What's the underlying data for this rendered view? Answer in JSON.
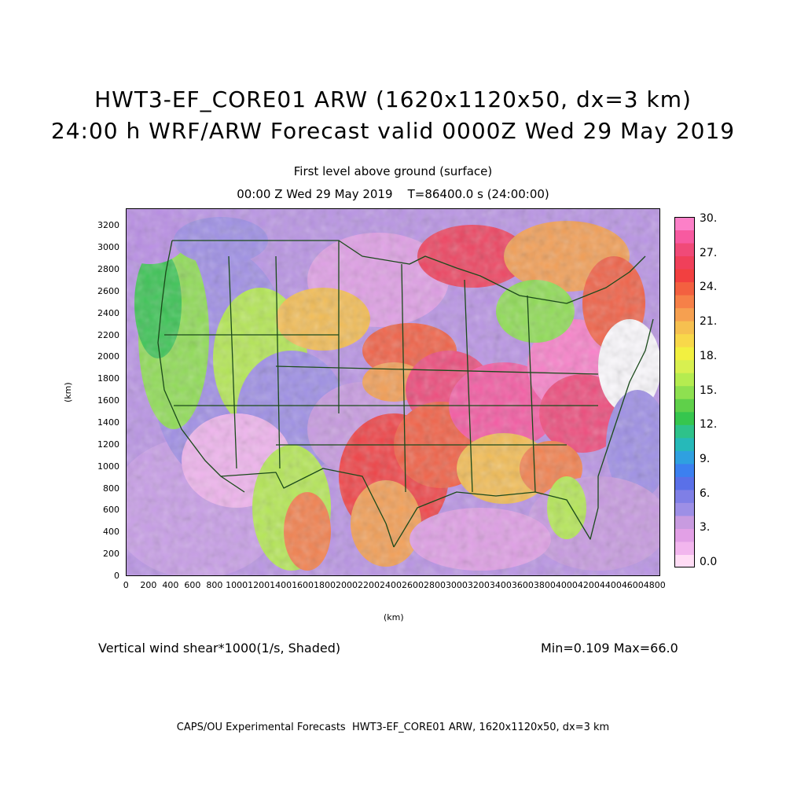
{
  "titles": {
    "main": "HWT3-EF_CORE01 ARW (1620x1120x50, dx=3 km)",
    "forecast": "24:00 h WRF/ARW Forecast valid 0000Z Wed 29 May 2019",
    "level": "First level above ground (surface)",
    "valid_time": "00:00 Z Wed 29 May 2019    T=86400.0 s (24:00:00)"
  },
  "axes": {
    "x_label": "(km)",
    "y_label": "(km)",
    "x_ticks": [
      "0",
      "200",
      "400",
      "600",
      "800",
      "1000",
      "1200",
      "1400",
      "1600",
      "1800",
      "2000",
      "2200",
      "2400",
      "2600",
      "2800",
      "3000",
      "3200",
      "3400",
      "3600",
      "3800",
      "4000",
      "4200",
      "4400",
      "4600",
      "4800"
    ],
    "y_ticks": [
      "0",
      "200",
      "400",
      "600",
      "800",
      "1000",
      "1200",
      "1400",
      "1600",
      "1800",
      "2000",
      "2200",
      "2400",
      "2600",
      "2800",
      "3000",
      "3200"
    ],
    "x_range": [
      0,
      4860
    ],
    "y_range": [
      0,
      3360
    ]
  },
  "colorbar": {
    "labels": [
      "30.",
      "27.",
      "24.",
      "21.",
      "18.",
      "15.",
      "12.",
      "9.",
      "6.",
      "3.",
      "0.0"
    ],
    "colors": [
      "#ffdcf5",
      "#f2b6ee",
      "#e2a0e6",
      "#c89be0",
      "#9d8fe6",
      "#7f7fe6",
      "#5a70e8",
      "#3c80f0",
      "#2fa0e0",
      "#26b9b9",
      "#2ec28a",
      "#36c64e",
      "#5fd04a",
      "#8ee050",
      "#b5ec50",
      "#d8f050",
      "#f2f040",
      "#f8d84a",
      "#f6c050",
      "#f6a050",
      "#f68048",
      "#f36040",
      "#f24040",
      "#f0405a",
      "#f04a78",
      "#f75aa0",
      "#fc80c8"
    ]
  },
  "footer": {
    "field": "Vertical wind shear*1000(1/s, Shaded)",
    "stats": "Min=0.109 Max=66.0",
    "credit": "CAPS/OU Experimental Forecasts  HWT3-EF_CORE01 ARW, 1620x1120x50, dx=3 km"
  }
}
